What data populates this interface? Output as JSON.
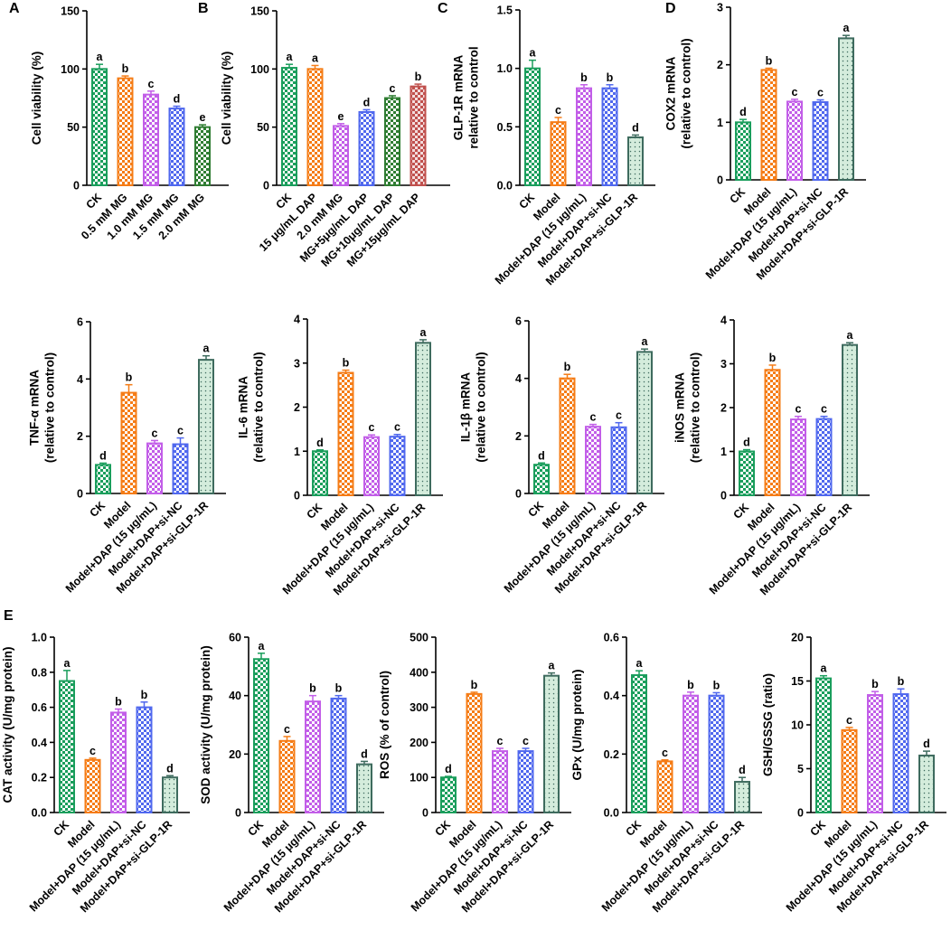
{
  "colors": {
    "green": "#1a9e5c",
    "orange": "#f57c16",
    "violet": "#c25ee8",
    "blue": "#5068ee",
    "darkgreen": "#2f7d32",
    "red": "#c0504d",
    "teal": "#3e6b5e",
    "light_teal": "#d4ecdc"
  },
  "chart_data": [
    {
      "type": "bar",
      "panel": "A",
      "ylabel": [
        "Cell viability (%)"
      ],
      "ylim": [
        0,
        150
      ],
      "yticks": [
        0,
        50,
        100,
        150
      ],
      "categories": [
        "CK",
        "0.5 mM MG",
        "1.0 mM MG",
        "1.5 mM MG",
        "2.0 mM MG"
      ],
      "values": [
        100,
        92,
        78,
        66,
        50
      ],
      "errors": [
        4,
        2,
        3,
        2,
        2
      ],
      "letters": [
        "a",
        "b",
        "c",
        "d",
        "e"
      ],
      "styles": [
        "green",
        "orange",
        "violet",
        "blue",
        "darkgreen"
      ]
    },
    {
      "type": "bar",
      "panel": "B",
      "ylabel": [
        "Cell viability (%)"
      ],
      "ylim": [
        0,
        150
      ],
      "yticks": [
        0,
        50,
        100,
        150
      ],
      "categories": [
        "CK",
        "15 μg/mL DAP",
        "2.0 mM MG",
        "MG+5μg/mL DAP",
        "MG+10μg/mL DAP",
        "MG+15μg/mL DAP"
      ],
      "values": [
        101,
        100,
        51,
        63,
        75,
        85
      ],
      "errors": [
        3,
        3,
        2,
        2,
        2,
        2
      ],
      "letters": [
        "a",
        "a",
        "e",
        "d",
        "c",
        "b"
      ],
      "styles": [
        "green",
        "orange",
        "violet",
        "blue",
        "darkgreen",
        "red"
      ]
    },
    {
      "type": "bar",
      "panel": "C",
      "ylabel": [
        "GLP-1R mRNA",
        "relative to control"
      ],
      "ylim": [
        0,
        1.5
      ],
      "yticks": [
        0.0,
        0.5,
        1.0,
        1.5
      ],
      "categories": [
        "CK",
        "Model",
        "Model+DAP (15 μg/mL)",
        "Model+DAP+si-NC",
        "Model+DAP+si-GLP-1R"
      ],
      "values": [
        1.0,
        0.54,
        0.83,
        0.83,
        0.41
      ],
      "errors": [
        0.07,
        0.04,
        0.03,
        0.03,
        0.02
      ],
      "letters": [
        "a",
        "c",
        "b",
        "b",
        "d"
      ],
      "styles": [
        "green",
        "orange",
        "violet",
        "blue",
        "teal"
      ]
    },
    {
      "type": "bar",
      "panel": "D",
      "ylabel": [
        "COX2 mRNA",
        "(relative to control)"
      ],
      "ylim": [
        0,
        3
      ],
      "yticks": [
        0,
        1,
        2,
        3
      ],
      "categories": [
        "CK",
        "Model",
        "Model+DAP (15 μg/mL)",
        "Model+DAP+si-NC",
        "Model+DAP+si-GLP-1R"
      ],
      "values": [
        1.0,
        1.91,
        1.36,
        1.35,
        2.46
      ],
      "errors": [
        0.05,
        0.03,
        0.04,
        0.04,
        0.05
      ],
      "letters": [
        "d",
        "b",
        "c",
        "c",
        "a"
      ],
      "styles": [
        "green",
        "orange",
        "violet",
        "blue",
        "teal"
      ]
    },
    {
      "type": "bar",
      "panel": "",
      "ylabel": [
        "TNF-α mRNA",
        "(relative to control)"
      ],
      "ylim": [
        0,
        6
      ],
      "yticks": [
        0,
        2,
        4,
        6
      ],
      "categories": [
        "CK",
        "Model",
        "Model+DAP (15 μg/mL)",
        "Model+DAP+si-NC",
        "Model+DAP+si-GLP-1R"
      ],
      "values": [
        1.0,
        3.52,
        1.75,
        1.72,
        4.67
      ],
      "errors": [
        0.06,
        0.28,
        0.1,
        0.22,
        0.14
      ],
      "letters": [
        "d",
        "b",
        "c",
        "c",
        "a"
      ],
      "styles": [
        "green",
        "orange",
        "violet",
        "blue",
        "teal"
      ]
    },
    {
      "type": "bar",
      "panel": "",
      "ylabel": [
        "IL-6 mRNA",
        "(relative to control)"
      ],
      "ylim": [
        0,
        4
      ],
      "yticks": [
        0,
        1,
        2,
        3,
        4
      ],
      "categories": [
        "CK",
        "Model",
        "Model+DAP (15 μg/mL)",
        "Model+DAP+si-NC",
        "Model+DAP+si-GLP-1R"
      ],
      "values": [
        1.0,
        2.78,
        1.32,
        1.33,
        3.46
      ],
      "errors": [
        0.03,
        0.06,
        0.05,
        0.05,
        0.07
      ],
      "letters": [
        "d",
        "b",
        "c",
        "c",
        "a"
      ],
      "styles": [
        "green",
        "orange",
        "violet",
        "blue",
        "teal"
      ]
    },
    {
      "type": "bar",
      "panel": "",
      "ylabel": [
        "IL-1β mRNA",
        "(relative to control)"
      ],
      "ylim": [
        0,
        6
      ],
      "yticks": [
        0,
        2,
        4,
        6
      ],
      "categories": [
        "CK",
        "Model",
        "Model+DAP (15 μg/mL)",
        "Model+DAP+si-NC",
        "Model+DAP+si-GLP-1R"
      ],
      "values": [
        1.0,
        4.0,
        2.32,
        2.3,
        4.92
      ],
      "errors": [
        0.06,
        0.14,
        0.08,
        0.16,
        0.1
      ],
      "letters": [
        "d",
        "b",
        "c",
        "c",
        "a"
      ],
      "styles": [
        "green",
        "orange",
        "violet",
        "blue",
        "teal"
      ]
    },
    {
      "type": "bar",
      "panel": "",
      "ylabel": [
        "iNOS mRNA",
        "(relative to control)"
      ],
      "ylim": [
        0,
        4
      ],
      "yticks": [
        0,
        1,
        2,
        3,
        4
      ],
      "categories": [
        "CK",
        "Model",
        "Model+DAP (15 μg/mL)",
        "Model+DAP+si-NC",
        "Model+DAP+si-GLP-1R"
      ],
      "values": [
        1.0,
        2.86,
        1.73,
        1.74,
        3.43
      ],
      "errors": [
        0.04,
        0.11,
        0.07,
        0.06,
        0.05
      ],
      "letters": [
        "d",
        "b",
        "c",
        "c",
        "a"
      ],
      "styles": [
        "green",
        "orange",
        "violet",
        "blue",
        "teal"
      ]
    },
    {
      "type": "bar",
      "panel": "E",
      "ylabel": [
        "CAT activity (U/mg protein)"
      ],
      "ylim": [
        0,
        1.0
      ],
      "yticks": [
        0.0,
        0.2,
        0.4,
        0.6,
        0.8,
        1.0
      ],
      "categories": [
        "CK",
        "Model",
        "Model+DAP (15 μg/mL)",
        "Model+DAP+si-NC",
        "Model+DAP+si-GLP-1R"
      ],
      "values": [
        0.75,
        0.3,
        0.57,
        0.6,
        0.2
      ],
      "errors": [
        0.06,
        0.01,
        0.02,
        0.03,
        0.01
      ],
      "letters": [
        "a",
        "c",
        "b",
        "b",
        "d"
      ],
      "styles": [
        "green",
        "orange",
        "violet",
        "blue",
        "teal"
      ]
    },
    {
      "type": "bar",
      "panel": "",
      "ylabel": [
        "SOD activity (U/mg protein)"
      ],
      "ylim": [
        0,
        60
      ],
      "yticks": [
        0,
        20,
        40,
        60
      ],
      "categories": [
        "CK",
        "Model",
        "Model+DAP (15 μg/mL)",
        "Model+DAP+si-NC",
        "Model+DAP+si-GLP-1R"
      ],
      "values": [
        52.5,
        24.5,
        38,
        39,
        16.5
      ],
      "errors": [
        2,
        1.5,
        2,
        1,
        1
      ],
      "letters": [
        "a",
        "c",
        "b",
        "b",
        "d"
      ],
      "styles": [
        "green",
        "orange",
        "violet",
        "blue",
        "teal"
      ]
    },
    {
      "type": "bar",
      "panel": "",
      "ylabel": [
        "ROS (% of control)"
      ],
      "ylim": [
        0,
        500
      ],
      "yticks": [
        0,
        100,
        200,
        300,
        400,
        500
      ],
      "categories": [
        "CK",
        "Model",
        "Model+DAP (15 μg/mL)",
        "Model+DAP+si-NC",
        "Model+DAP+si-GLP-1R"
      ],
      "values": [
        100,
        338,
        175,
        175,
        390
      ],
      "errors": [
        3,
        5,
        8,
        8,
        8
      ],
      "letters": [
        "d",
        "b",
        "c",
        "c",
        "a"
      ],
      "styles": [
        "green",
        "orange",
        "violet",
        "blue",
        "teal"
      ]
    },
    {
      "type": "bar",
      "panel": "",
      "ylabel": [
        "GPx (U/mg protein)"
      ],
      "ylim": [
        0,
        0.6
      ],
      "yticks": [
        0.0,
        0.2,
        0.4,
        0.6
      ],
      "categories": [
        "CK",
        "Model",
        "Model+DAP (15 μg/mL)",
        "Model+DAP+si-NC",
        "Model+DAP+si-GLP-1R"
      ],
      "values": [
        0.47,
        0.175,
        0.4,
        0.4,
        0.105
      ],
      "errors": [
        0.015,
        0.005,
        0.012,
        0.01,
        0.015
      ],
      "letters": [
        "a",
        "c",
        "b",
        "b",
        "d"
      ],
      "styles": [
        "green",
        "orange",
        "violet",
        "blue",
        "teal"
      ]
    },
    {
      "type": "bar",
      "panel": "",
      "ylabel": [
        "GSH/GSSG (ratio)"
      ],
      "ylim": [
        0,
        20
      ],
      "yticks": [
        0,
        5,
        10,
        15,
        20
      ],
      "categories": [
        "CK",
        "Model",
        "Model+DAP (15 μg/mL)",
        "Model+DAP+si-NC",
        "Model+DAP+si-GLP-1R"
      ],
      "values": [
        15.3,
        9.4,
        13.4,
        13.5,
        6.5
      ],
      "errors": [
        0.3,
        0.3,
        0.4,
        0.6,
        0.5
      ],
      "letters": [
        "a",
        "c",
        "b",
        "b",
        "d"
      ],
      "styles": [
        "green",
        "orange",
        "violet",
        "blue",
        "teal"
      ]
    }
  ]
}
